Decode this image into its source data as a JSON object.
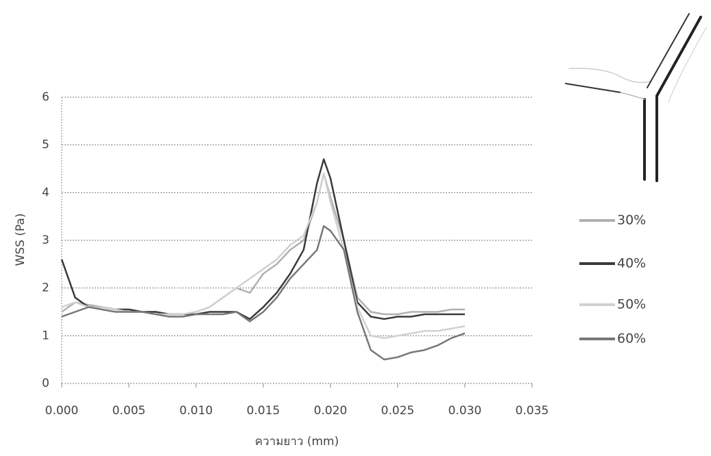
{
  "chart_data": {
    "type": "line",
    "x_label": "ความยาว (mm)",
    "y_label": "WSS (Pa)",
    "x": [
      0,
      0.001,
      0.002,
      0.003,
      0.004,
      0.005,
      0.006,
      0.007,
      0.008,
      0.009,
      0.01,
      0.011,
      0.012,
      0.013,
      0.014,
      0.015,
      0.016,
      0.017,
      0.018,
      0.019,
      0.0195,
      0.02,
      0.021,
      0.022,
      0.023,
      0.024,
      0.025,
      0.026,
      0.027,
      0.028,
      0.029,
      0.03
    ],
    "series": [
      {
        "name": "30%",
        "color": "#b0b0b0",
        "values": [
          1.5,
          1.7,
          1.65,
          1.6,
          1.55,
          1.55,
          1.5,
          1.5,
          1.45,
          1.45,
          1.5,
          1.6,
          1.8,
          2.0,
          1.9,
          2.3,
          2.5,
          2.8,
          3.0,
          3.8,
          4.4,
          3.9,
          3.0,
          1.8,
          1.5,
          1.45,
          1.45,
          1.5,
          1.5,
          1.5,
          1.55,
          1.55
        ]
      },
      {
        "name": "40%",
        "color": "#3a3a3a",
        "values": [
          2.6,
          1.8,
          1.6,
          1.6,
          1.55,
          1.55,
          1.5,
          1.5,
          1.45,
          1.45,
          1.45,
          1.5,
          1.5,
          1.5,
          1.35,
          1.6,
          1.9,
          2.3,
          2.8,
          4.2,
          4.7,
          4.3,
          3.0,
          1.7,
          1.4,
          1.35,
          1.4,
          1.4,
          1.45,
          1.45,
          1.45,
          1.45
        ]
      },
      {
        "name": "50%",
        "color": "#d0d0d0",
        "values": [
          1.6,
          1.7,
          1.6,
          1.6,
          1.55,
          1.5,
          1.5,
          1.45,
          1.45,
          1.45,
          1.5,
          1.6,
          1.8,
          2.0,
          2.2,
          2.4,
          2.6,
          2.9,
          3.1,
          3.8,
          4.4,
          3.8,
          2.8,
          1.6,
          1.0,
          0.95,
          1.0,
          1.05,
          1.1,
          1.1,
          1.15,
          1.2
        ]
      },
      {
        "name": "60%",
        "color": "#777777",
        "values": [
          1.4,
          1.5,
          1.6,
          1.55,
          1.5,
          1.5,
          1.5,
          1.45,
          1.4,
          1.4,
          1.45,
          1.45,
          1.45,
          1.5,
          1.3,
          1.5,
          1.8,
          2.2,
          2.5,
          2.8,
          3.3,
          3.2,
          2.8,
          1.5,
          0.7,
          0.5,
          0.55,
          0.65,
          0.7,
          0.8,
          0.95,
          1.05
        ]
      }
    ],
    "xlim": [
      0,
      0.035
    ],
    "xticks": [
      {
        "value": 0,
        "label": "0.000"
      },
      {
        "value": 0.005,
        "label": "0.005"
      },
      {
        "value": 0.01,
        "label": "0.010"
      },
      {
        "value": 0.015,
        "label": "0.015"
      },
      {
        "value": 0.02,
        "label": "0.020"
      },
      {
        "value": 0.025,
        "label": "0.025"
      },
      {
        "value": 0.03,
        "label": "0.030"
      },
      {
        "value": 0.035,
        "label": "0.035"
      }
    ],
    "ylim": [
      0,
      6
    ],
    "yticks": [
      0,
      1,
      2,
      3,
      4,
      5,
      6
    ],
    "grid": true,
    "legend": "right"
  }
}
